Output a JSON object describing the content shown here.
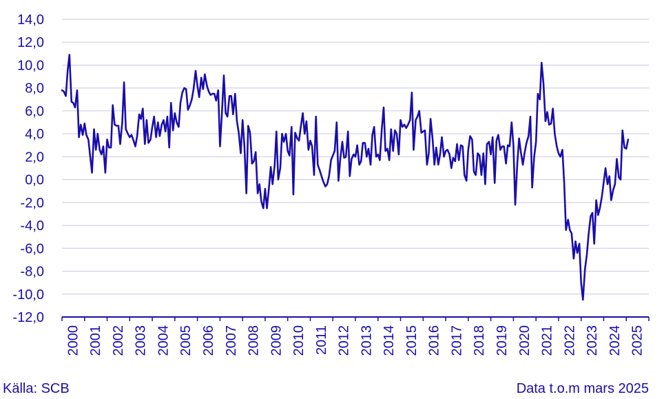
{
  "chart_data": {
    "type": "line",
    "title": "",
    "xlabel": "",
    "ylabel": "",
    "ylim": [
      -12,
      14
    ],
    "yticks": [
      -12,
      -10,
      -8,
      -6,
      -4,
      -2,
      0,
      2,
      4,
      6,
      8,
      10,
      12,
      14
    ],
    "ytick_labels": [
      "-12,0",
      "-10,0",
      "-8,0",
      "-6,0",
      "-4,0",
      "-2,0",
      "0,0",
      "2,0",
      "4,0",
      "6,0",
      "8,0",
      "10,0",
      "12,0",
      "14,0"
    ],
    "xlim": [
      2000,
      2026
    ],
    "xtick_labels": [
      "2000",
      "2001",
      "2002",
      "2003",
      "2004",
      "2005",
      "2006",
      "2007",
      "2008",
      "2009",
      "2010",
      "2011",
      "2012",
      "2013",
      "2014",
      "2015",
      "2016",
      "2017",
      "2018",
      "2019",
      "2020",
      "2021",
      "2022",
      "2023",
      "2024",
      "2025"
    ],
    "grid": "horizontal",
    "colors": {
      "line": "#1a0dab",
      "text": "#1a0dab",
      "grid": "#c8c8e6",
      "axis": "#1a0dab"
    },
    "series": [
      {
        "name": "",
        "points": [
          [
            2000.0,
            7.8
          ],
          [
            2000.08,
            7.7
          ],
          [
            2000.17,
            7.3
          ],
          [
            2000.25,
            9.5
          ],
          [
            2000.33,
            10.9
          ],
          [
            2000.42,
            6.8
          ],
          [
            2000.5,
            6.7
          ],
          [
            2000.58,
            6.3
          ],
          [
            2000.67,
            7.8
          ],
          [
            2000.75,
            3.7
          ],
          [
            2000.83,
            4.8
          ],
          [
            2000.92,
            3.9
          ],
          [
            2001.0,
            4.9
          ],
          [
            2001.08,
            3.9
          ],
          [
            2001.17,
            3.5
          ],
          [
            2001.25,
            2.0
          ],
          [
            2001.33,
            0.6
          ],
          [
            2001.42,
            4.4
          ],
          [
            2001.5,
            2.6
          ],
          [
            2001.58,
            4.0
          ],
          [
            2001.67,
            2.6
          ],
          [
            2001.75,
            2.2
          ],
          [
            2001.83,
            2.9
          ],
          [
            2001.92,
            0.6
          ],
          [
            2002.0,
            3.5
          ],
          [
            2002.08,
            2.8
          ],
          [
            2002.17,
            2.8
          ],
          [
            2002.25,
            6.5
          ],
          [
            2002.33,
            4.8
          ],
          [
            2002.42,
            4.7
          ],
          [
            2002.5,
            4.7
          ],
          [
            2002.58,
            3.1
          ],
          [
            2002.67,
            5.0
          ],
          [
            2002.75,
            8.5
          ],
          [
            2002.83,
            4.4
          ],
          [
            2002.92,
            4.0
          ],
          [
            2003.0,
            3.7
          ],
          [
            2003.08,
            3.9
          ],
          [
            2003.17,
            3.4
          ],
          [
            2003.25,
            2.9
          ],
          [
            2003.33,
            3.8
          ],
          [
            2003.42,
            5.7
          ],
          [
            2003.5,
            5.3
          ],
          [
            2003.58,
            6.2
          ],
          [
            2003.67,
            3.1
          ],
          [
            2003.75,
            5.2
          ],
          [
            2003.83,
            3.2
          ],
          [
            2003.92,
            3.5
          ],
          [
            2004.0,
            4.6
          ],
          [
            2004.08,
            5.5
          ],
          [
            2004.17,
            3.7
          ],
          [
            2004.25,
            5.0
          ],
          [
            2004.33,
            3.8
          ],
          [
            2004.42,
            4.8
          ],
          [
            2004.5,
            5.2
          ],
          [
            2004.58,
            4.2
          ],
          [
            2004.67,
            5.5
          ],
          [
            2004.75,
            2.8
          ],
          [
            2004.83,
            6.7
          ],
          [
            2004.92,
            4.3
          ],
          [
            2005.0,
            5.8
          ],
          [
            2005.08,
            5.0
          ],
          [
            2005.17,
            4.6
          ],
          [
            2005.25,
            6.7
          ],
          [
            2005.33,
            7.6
          ],
          [
            2005.42,
            8.0
          ],
          [
            2005.5,
            7.9
          ],
          [
            2005.58,
            6.1
          ],
          [
            2005.67,
            6.5
          ],
          [
            2005.75,
            7.0
          ],
          [
            2005.83,
            7.9
          ],
          [
            2005.92,
            9.5
          ],
          [
            2006.0,
            8.2
          ],
          [
            2006.08,
            7.2
          ],
          [
            2006.17,
            8.9
          ],
          [
            2006.25,
            7.9
          ],
          [
            2006.33,
            9.2
          ],
          [
            2006.42,
            8.2
          ],
          [
            2006.5,
            7.7
          ],
          [
            2006.58,
            7.4
          ],
          [
            2006.67,
            7.5
          ],
          [
            2006.75,
            7.5
          ],
          [
            2006.83,
            6.9
          ],
          [
            2006.92,
            7.8
          ],
          [
            2007.0,
            2.9
          ],
          [
            2007.08,
            5.6
          ],
          [
            2007.17,
            9.1
          ],
          [
            2007.25,
            5.8
          ],
          [
            2007.33,
            5.5
          ],
          [
            2007.42,
            7.3
          ],
          [
            2007.5,
            7.3
          ],
          [
            2007.58,
            5.7
          ],
          [
            2007.67,
            7.5
          ],
          [
            2007.75,
            5.1
          ],
          [
            2007.83,
            4.1
          ],
          [
            2007.92,
            2.3
          ],
          [
            2008.0,
            5.2
          ],
          [
            2008.08,
            3.0
          ],
          [
            2008.17,
            -1.2
          ],
          [
            2008.25,
            4.7
          ],
          [
            2008.33,
            4.1
          ],
          [
            2008.42,
            1.4
          ],
          [
            2008.5,
            1.6
          ],
          [
            2008.58,
            2.4
          ],
          [
            2008.67,
            -1.2
          ],
          [
            2008.75,
            -0.4
          ],
          [
            2008.83,
            -1.9
          ],
          [
            2008.92,
            -2.5
          ],
          [
            2009.0,
            -0.8
          ],
          [
            2009.08,
            -2.5
          ],
          [
            2009.17,
            -0.7
          ],
          [
            2009.25,
            1.1
          ],
          [
            2009.33,
            -0.4
          ],
          [
            2009.42,
            1.2
          ],
          [
            2009.5,
            4.2
          ],
          [
            2009.58,
            0.0
          ],
          [
            2009.67,
            1.0
          ],
          [
            2009.75,
            4.0
          ],
          [
            2009.83,
            3.3
          ],
          [
            2009.92,
            4.0
          ],
          [
            2010.0,
            2.5
          ],
          [
            2010.08,
            2.1
          ],
          [
            2010.17,
            4.6
          ],
          [
            2010.25,
            -1.3
          ],
          [
            2010.33,
            4.1
          ],
          [
            2010.42,
            3.6
          ],
          [
            2010.5,
            3.4
          ],
          [
            2010.58,
            4.6
          ],
          [
            2010.67,
            5.8
          ],
          [
            2010.75,
            4.0
          ],
          [
            2010.83,
            5.1
          ],
          [
            2010.92,
            2.6
          ],
          [
            2011.0,
            3.4
          ],
          [
            2011.08,
            2.9
          ],
          [
            2011.17,
            0.4
          ],
          [
            2011.25,
            5.5
          ],
          [
            2011.33,
            1.3
          ],
          [
            2011.42,
            0.8
          ],
          [
            2011.5,
            0.3
          ],
          [
            2011.58,
            -0.2
          ],
          [
            2011.67,
            -0.6
          ],
          [
            2011.75,
            -0.4
          ],
          [
            2011.83,
            0.3
          ],
          [
            2011.92,
            1.7
          ],
          [
            2012.0,
            2.1
          ],
          [
            2012.08,
            2.5
          ],
          [
            2012.17,
            5.0
          ],
          [
            2012.25,
            -0.1
          ],
          [
            2012.33,
            1.8
          ],
          [
            2012.42,
            3.3
          ],
          [
            2012.5,
            1.9
          ],
          [
            2012.58,
            2.0
          ],
          [
            2012.67,
            4.2
          ],
          [
            2012.75,
            0.3
          ],
          [
            2012.83,
            1.8
          ],
          [
            2012.92,
            2.2
          ],
          [
            2013.0,
            2.0
          ],
          [
            2013.08,
            3.0
          ],
          [
            2013.17,
            1.3
          ],
          [
            2013.25,
            1.6
          ],
          [
            2013.33,
            3.2
          ],
          [
            2013.42,
            3.2
          ],
          [
            2013.5,
            2.0
          ],
          [
            2013.58,
            2.7
          ],
          [
            2013.67,
            1.3
          ],
          [
            2013.75,
            3.9
          ],
          [
            2013.83,
            4.6
          ],
          [
            2013.92,
            2.0
          ],
          [
            2014.0,
            2.2
          ],
          [
            2014.08,
            1.7
          ],
          [
            2014.17,
            4.4
          ],
          [
            2014.25,
            6.3
          ],
          [
            2014.33,
            2.5
          ],
          [
            2014.42,
            2.7
          ],
          [
            2014.5,
            1.7
          ],
          [
            2014.58,
            4.4
          ],
          [
            2014.67,
            2.5
          ],
          [
            2014.75,
            4.3
          ],
          [
            2014.83,
            4.0
          ],
          [
            2014.92,
            2.2
          ],
          [
            2015.0,
            5.2
          ],
          [
            2015.08,
            4.6
          ],
          [
            2015.17,
            4.8
          ],
          [
            2015.25,
            4.5
          ],
          [
            2015.33,
            4.8
          ],
          [
            2015.42,
            5.2
          ],
          [
            2015.5,
            7.6
          ],
          [
            2015.58,
            2.6
          ],
          [
            2015.67,
            5.2
          ],
          [
            2015.75,
            5.5
          ],
          [
            2015.83,
            6.0
          ],
          [
            2015.92,
            4.1
          ],
          [
            2016.0,
            4.2
          ],
          [
            2016.08,
            4.3
          ],
          [
            2016.17,
            1.3
          ],
          [
            2016.25,
            2.3
          ],
          [
            2016.33,
            5.3
          ],
          [
            2016.42,
            3.5
          ],
          [
            2016.5,
            1.3
          ],
          [
            2016.58,
            2.8
          ],
          [
            2016.67,
            1.3
          ],
          [
            2016.75,
            2.2
          ],
          [
            2016.83,
            3.7
          ],
          [
            2016.92,
            2.0
          ],
          [
            2017.0,
            2.5
          ],
          [
            2017.08,
            2.6
          ],
          [
            2017.17,
            2.2
          ],
          [
            2017.25,
            1.0
          ],
          [
            2017.33,
            1.9
          ],
          [
            2017.42,
            1.6
          ],
          [
            2017.5,
            3.1
          ],
          [
            2017.58,
            1.7
          ],
          [
            2017.67,
            3.0
          ],
          [
            2017.75,
            2.9
          ],
          [
            2017.83,
            0.4
          ],
          [
            2017.92,
            -0.1
          ],
          [
            2018.0,
            2.6
          ],
          [
            2018.08,
            3.8
          ],
          [
            2018.17,
            3.5
          ],
          [
            2018.25,
            0.7
          ],
          [
            2018.33,
            0.4
          ],
          [
            2018.42,
            2.3
          ],
          [
            2018.5,
            2.1
          ],
          [
            2018.58,
            0.4
          ],
          [
            2018.67,
            2.3
          ],
          [
            2018.75,
            -0.4
          ],
          [
            2018.83,
            3.1
          ],
          [
            2018.92,
            3.3
          ],
          [
            2019.0,
            2.2
          ],
          [
            2019.08,
            3.7
          ],
          [
            2019.17,
            -0.3
          ],
          [
            2019.25,
            3.4
          ],
          [
            2019.33,
            3.9
          ],
          [
            2019.42,
            2.6
          ],
          [
            2019.5,
            2.9
          ],
          [
            2019.58,
            2.9
          ],
          [
            2019.67,
            1.4
          ],
          [
            2019.75,
            3.0
          ],
          [
            2019.83,
            2.9
          ],
          [
            2019.92,
            5.0
          ],
          [
            2020.0,
            3.0
          ],
          [
            2020.08,
            -2.2
          ],
          [
            2020.17,
            1.4
          ],
          [
            2020.25,
            3.6
          ],
          [
            2020.33,
            2.4
          ],
          [
            2020.42,
            1.3
          ],
          [
            2020.5,
            2.4
          ],
          [
            2020.58,
            3.2
          ],
          [
            2020.67,
            3.8
          ],
          [
            2020.75,
            5.5
          ],
          [
            2020.83,
            -0.7
          ],
          [
            2020.92,
            2.0
          ],
          [
            2021.0,
            3.3
          ],
          [
            2021.08,
            7.5
          ],
          [
            2021.17,
            7.0
          ],
          [
            2021.25,
            10.2
          ],
          [
            2021.33,
            8.4
          ],
          [
            2021.42,
            5.1
          ],
          [
            2021.5,
            5.9
          ],
          [
            2021.58,
            4.8
          ],
          [
            2021.67,
            4.9
          ],
          [
            2021.75,
            6.2
          ],
          [
            2021.83,
            4.0
          ],
          [
            2021.92,
            2.9
          ],
          [
            2022.0,
            2.3
          ],
          [
            2022.08,
            2.0
          ],
          [
            2022.17,
            2.6
          ],
          [
            2022.25,
            -0.3
          ],
          [
            2022.33,
            -4.4
          ],
          [
            2022.42,
            -3.5
          ],
          [
            2022.5,
            -4.4
          ],
          [
            2022.58,
            -4.7
          ],
          [
            2022.67,
            -6.9
          ],
          [
            2022.75,
            -5.4
          ],
          [
            2022.83,
            -6.4
          ],
          [
            2022.92,
            -5.6
          ],
          [
            2023.0,
            -9.0
          ],
          [
            2023.08,
            -10.5
          ],
          [
            2023.17,
            -7.8
          ],
          [
            2023.25,
            -6.6
          ],
          [
            2023.33,
            -4.8
          ],
          [
            2023.42,
            -3.2
          ],
          [
            2023.5,
            -2.9
          ],
          [
            2023.58,
            -5.6
          ],
          [
            2023.67,
            -1.8
          ],
          [
            2023.75,
            -3.1
          ],
          [
            2023.83,
            -2.5
          ],
          [
            2023.92,
            -1.5
          ],
          [
            2024.0,
            -0.2
          ],
          [
            2024.08,
            1.0
          ],
          [
            2024.17,
            -0.4
          ],
          [
            2024.25,
            0.3
          ],
          [
            2024.33,
            -1.8
          ],
          [
            2024.42,
            -0.9
          ],
          [
            2024.5,
            -0.4
          ],
          [
            2024.58,
            1.8
          ],
          [
            2024.67,
            0.2
          ],
          [
            2024.75,
            0.0
          ],
          [
            2024.83,
            4.3
          ],
          [
            2024.92,
            2.8
          ],
          [
            2025.0,
            2.7
          ],
          [
            2025.08,
            3.5
          ]
        ]
      }
    ]
  },
  "footer": {
    "source": "Källa: SCB",
    "note": "Data t.o.m mars 2025"
  }
}
